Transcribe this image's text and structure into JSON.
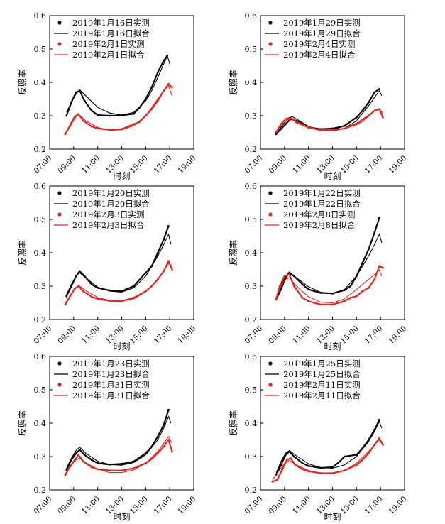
{
  "colors": {
    "measured_2019_jan": "#000000",
    "fitted_2019_jan": "#000000",
    "measured_2019_feb": "#e8221e",
    "fitted_2019_feb": "#e8221e",
    "axis": "#000000"
  },
  "chart_data": [
    {
      "type": "line",
      "xlabel": "时刻",
      "ylabel": "反照率",
      "xticks": [
        "07:00",
        "09:00",
        "11:00",
        "13:00",
        "15:00",
        "17:00",
        "19:00"
      ],
      "yticks": [
        "0.2",
        "0.3",
        "0.4",
        "0.5",
        "0.6"
      ],
      "xlim": [
        7,
        19
      ],
      "ylim": [
        0.2,
        0.6
      ],
      "legend_position": "top-left",
      "series": [
        {
          "name": "2019年1月16日实测",
          "style": "points",
          "color": "#000000",
          "x": [
            8.4,
            8.8,
            9.2,
            9.5,
            9.9,
            10.5,
            11,
            12,
            13,
            14,
            14.5,
            15,
            15.5,
            16,
            16.5,
            16.8
          ],
          "y": [
            0.3,
            0.34,
            0.37,
            0.375,
            0.345,
            0.315,
            0.302,
            0.3,
            0.301,
            0.306,
            0.325,
            0.35,
            0.385,
            0.43,
            0.465,
            0.48
          ]
        },
        {
          "name": "2019年1月16日拟合",
          "style": "line",
          "color": "#000000",
          "x": [
            8.4,
            8.8,
            9.2,
            9.5,
            10,
            11,
            12,
            13,
            14,
            15,
            15.5,
            16,
            16.5,
            16.8,
            17
          ],
          "y": [
            0.31,
            0.34,
            0.365,
            0.378,
            0.36,
            0.325,
            0.308,
            0.302,
            0.31,
            0.345,
            0.375,
            0.415,
            0.455,
            0.48,
            0.455
          ]
        },
        {
          "name": "2019年2月1日实测",
          "style": "points",
          "color": "#e8221e",
          "x": [
            8.3,
            8.7,
            9.1,
            9.4,
            9.8,
            10.5,
            11,
            12,
            13,
            14,
            14.5,
            15,
            15.5,
            16,
            16.5,
            16.9,
            17.2
          ],
          "y": [
            0.245,
            0.27,
            0.295,
            0.305,
            0.285,
            0.268,
            0.262,
            0.258,
            0.26,
            0.275,
            0.282,
            0.3,
            0.32,
            0.345,
            0.375,
            0.395,
            0.385
          ]
        },
        {
          "name": "2019年2月1日拟合",
          "style": "line",
          "color": "#e8221e",
          "x": [
            8.3,
            8.7,
            9.1,
            9.4,
            10,
            11,
            12,
            13,
            14,
            15,
            15.5,
            16,
            16.5,
            16.9,
            17.2
          ],
          "y": [
            0.245,
            0.275,
            0.3,
            0.305,
            0.285,
            0.265,
            0.256,
            0.258,
            0.27,
            0.3,
            0.325,
            0.35,
            0.375,
            0.39,
            0.36
          ]
        }
      ]
    },
    {
      "type": "line",
      "xlabel": "时刻",
      "ylabel": "反照率",
      "xticks": [
        "07:00",
        "09:00",
        "11:00",
        "13:00",
        "15:00",
        "17:00",
        "19:00"
      ],
      "yticks": [
        "0.2",
        "0.3",
        "0.4",
        "0.5",
        "0.6"
      ],
      "xlim": [
        7,
        19
      ],
      "ylim": [
        0.2,
        0.6
      ],
      "legend_position": "top-left",
      "series": [
        {
          "name": "2019年1月29日实测",
          "style": "points",
          "color": "#000000",
          "x": [
            8.3,
            8.7,
            9.1,
            9.5,
            10,
            11,
            12,
            13,
            13.5,
            14,
            15,
            15.5,
            16,
            16.5,
            16.9
          ],
          "y": [
            0.245,
            0.26,
            0.275,
            0.29,
            0.285,
            0.265,
            0.26,
            0.262,
            0.265,
            0.27,
            0.295,
            0.315,
            0.34,
            0.37,
            0.38
          ]
        },
        {
          "name": "2019年1月29日拟合",
          "style": "line",
          "color": "#000000",
          "x": [
            8.3,
            8.8,
            9.3,
            9.6,
            10,
            11,
            12,
            13,
            14,
            15,
            16,
            16.5,
            16.9,
            17.1
          ],
          "y": [
            0.245,
            0.27,
            0.29,
            0.298,
            0.29,
            0.268,
            0.256,
            0.254,
            0.262,
            0.285,
            0.33,
            0.355,
            0.375,
            0.36
          ]
        },
        {
          "name": "2019年2月4日实测",
          "style": "points",
          "color": "#e8221e",
          "x": [
            8.3,
            8.7,
            9.1,
            9.5,
            10,
            11,
            12,
            13,
            14,
            15,
            15.5,
            16,
            16.5,
            16.9,
            17.2
          ],
          "y": [
            0.25,
            0.275,
            0.29,
            0.295,
            0.28,
            0.265,
            0.257,
            0.257,
            0.262,
            0.275,
            0.285,
            0.3,
            0.315,
            0.32,
            0.295
          ]
        },
        {
          "name": "2019年2月4日拟合",
          "style": "line",
          "color": "#e8221e",
          "x": [
            8.3,
            8.8,
            9.3,
            9.6,
            10,
            11,
            12,
            13,
            14,
            15,
            16,
            16.5,
            16.9,
            17.2
          ],
          "y": [
            0.25,
            0.275,
            0.288,
            0.29,
            0.283,
            0.266,
            0.258,
            0.256,
            0.262,
            0.278,
            0.302,
            0.314,
            0.32,
            0.308
          ]
        }
      ]
    },
    {
      "type": "line",
      "xlabel": "时刻",
      "ylabel": "反照率",
      "xticks": [
        "07:00",
        "09:00",
        "11:00",
        "13:00",
        "15:00",
        "17:00",
        "19:00"
      ],
      "yticks": [
        "0.2",
        "0.3",
        "0.4",
        "0.5",
        "0.6"
      ],
      "xlim": [
        7,
        19
      ],
      "ylim": [
        0.2,
        0.6
      ],
      "legend_position": "top-left",
      "series": [
        {
          "name": "2019年1月20日实测",
          "style": "points",
          "color": "#000000",
          "x": [
            8.4,
            8.8,
            9.2,
            9.5,
            9.9,
            10.5,
            11,
            12,
            13,
            14,
            15,
            15.5,
            16,
            16.5,
            16.9
          ],
          "y": [
            0.27,
            0.3,
            0.33,
            0.345,
            0.33,
            0.305,
            0.295,
            0.287,
            0.285,
            0.3,
            0.34,
            0.36,
            0.4,
            0.44,
            0.48
          ]
        },
        {
          "name": "2019年1月20日拟合",
          "style": "line",
          "color": "#000000",
          "x": [
            8.4,
            8.8,
            9.2,
            9.5,
            10,
            11,
            12,
            13,
            14,
            15,
            16,
            16.5,
            16.9,
            17.1
          ],
          "y": [
            0.275,
            0.305,
            0.33,
            0.34,
            0.325,
            0.297,
            0.285,
            0.282,
            0.295,
            0.33,
            0.39,
            0.425,
            0.455,
            0.425
          ]
        },
        {
          "name": "2019年2月3日实测",
          "style": "points",
          "color": "#e8221e",
          "x": [
            8.3,
            8.7,
            9.1,
            9.4,
            9.8,
            10.5,
            11,
            12,
            13,
            14,
            15,
            15.5,
            16,
            16.5,
            16.9,
            17.2
          ],
          "y": [
            0.245,
            0.27,
            0.293,
            0.3,
            0.285,
            0.268,
            0.262,
            0.256,
            0.255,
            0.265,
            0.285,
            0.3,
            0.32,
            0.345,
            0.375,
            0.35
          ]
        },
        {
          "name": "2019年2月3日拟合",
          "style": "line",
          "color": "#e8221e",
          "x": [
            8.3,
            8.8,
            9.2,
            9.5,
            10,
            11,
            12,
            13,
            14,
            15,
            16,
            16.5,
            16.9,
            17.2
          ],
          "y": [
            0.248,
            0.278,
            0.295,
            0.3,
            0.287,
            0.266,
            0.257,
            0.255,
            0.262,
            0.283,
            0.32,
            0.345,
            0.368,
            0.36
          ]
        }
      ]
    },
    {
      "type": "line",
      "xlabel": "时刻",
      "ylabel": "反照率",
      "xticks": [
        "07:00",
        "09:00",
        "11:00",
        "13:00",
        "15:00",
        "17:00",
        "19:00"
      ],
      "yticks": [
        "0.2",
        "0.3",
        "0.4",
        "0.5",
        "0.6"
      ],
      "xlim": [
        7,
        19
      ],
      "ylim": [
        0.2,
        0.6
      ],
      "legend_position": "top-left",
      "series": [
        {
          "name": "2019年1月22日实测",
          "style": "points",
          "color": "#000000",
          "x": [
            8.3,
            8.7,
            9.1,
            9.4,
            9.8,
            10.5,
            11,
            12,
            13,
            14,
            14.5,
            15,
            15.5,
            16,
            16.5,
            16.9
          ],
          "y": [
            0.26,
            0.29,
            0.325,
            0.34,
            0.33,
            0.305,
            0.29,
            0.28,
            0.278,
            0.288,
            0.3,
            0.33,
            0.37,
            0.41,
            0.46,
            0.505
          ]
        },
        {
          "name": "2019年1月22日拟合",
          "style": "line",
          "color": "#000000",
          "x": [
            8.3,
            8.7,
            9.1,
            9.4,
            10,
            11,
            12,
            13,
            14,
            15,
            16,
            16.5,
            16.9,
            17.1
          ],
          "y": [
            0.265,
            0.3,
            0.33,
            0.342,
            0.325,
            0.298,
            0.282,
            0.278,
            0.29,
            0.33,
            0.39,
            0.425,
            0.455,
            0.43
          ]
        },
        {
          "name": "2019年2月8日实测",
          "style": "points",
          "color": "#e8221e",
          "x": [
            8.3,
            8.6,
            9,
            9.4,
            9.8,
            10.5,
            11,
            12,
            13,
            14,
            14.5,
            15,
            15.5,
            16,
            16.5,
            16.9,
            17.2
          ],
          "y": [
            0.26,
            0.3,
            0.33,
            0.335,
            0.3,
            0.265,
            0.255,
            0.245,
            0.245,
            0.255,
            0.265,
            0.27,
            0.285,
            0.295,
            0.32,
            0.36,
            0.355
          ]
        },
        {
          "name": "2019年2月8日拟合",
          "style": "line",
          "color": "#e8221e",
          "x": [
            8.3,
            8.7,
            9.1,
            9.4,
            10,
            11,
            12,
            13,
            14,
            15,
            16,
            16.5,
            16.9,
            17.1
          ],
          "y": [
            0.265,
            0.3,
            0.32,
            0.325,
            0.3,
            0.268,
            0.252,
            0.25,
            0.262,
            0.29,
            0.32,
            0.335,
            0.348,
            0.33
          ]
        }
      ]
    },
    {
      "type": "line",
      "xlabel": "时刻",
      "ylabel": "反照率",
      "xticks": [
        "07:00",
        "09:00",
        "11:00",
        "13:00",
        "15:00",
        "17:00",
        "19:00"
      ],
      "yticks": [
        "0.2",
        "0.3",
        "0.4",
        "0.5",
        "0.6"
      ],
      "xlim": [
        7,
        19
      ],
      "ylim": [
        0.2,
        0.6
      ],
      "legend_position": "top-left",
      "series": [
        {
          "name": "2019年1月23日实测",
          "style": "points",
          "color": "#000000",
          "x": [
            8.4,
            8.8,
            9.2,
            9.5,
            9.9,
            10.5,
            11,
            12,
            13,
            14,
            15,
            15.5,
            16,
            16.5,
            16.9
          ],
          "y": [
            0.26,
            0.29,
            0.31,
            0.32,
            0.305,
            0.29,
            0.28,
            0.276,
            0.278,
            0.285,
            0.31,
            0.33,
            0.36,
            0.395,
            0.44
          ]
        },
        {
          "name": "2019年1月23日拟合",
          "style": "line",
          "color": "#000000",
          "x": [
            8.4,
            8.8,
            9.2,
            9.5,
            10,
            11,
            12,
            13,
            14,
            15,
            16,
            16.5,
            16.9,
            17.1
          ],
          "y": [
            0.265,
            0.295,
            0.318,
            0.328,
            0.31,
            0.286,
            0.276,
            0.274,
            0.282,
            0.305,
            0.35,
            0.385,
            0.42,
            0.4
          ]
        },
        {
          "name": "2019年1月31日实测",
          "style": "points",
          "color": "#e8221e",
          "x": [
            8.3,
            8.7,
            9.1,
            9.4,
            9.8,
            10.5,
            11,
            12,
            13,
            14,
            15,
            15.5,
            16,
            16.5,
            16.9,
            17.2
          ],
          "y": [
            0.245,
            0.27,
            0.29,
            0.305,
            0.285,
            0.268,
            0.262,
            0.258,
            0.258,
            0.265,
            0.28,
            0.293,
            0.31,
            0.33,
            0.35,
            0.315
          ]
        },
        {
          "name": "2019年1月31日拟合",
          "style": "line",
          "color": "#e8221e",
          "x": [
            8.3,
            8.8,
            9.2,
            9.5,
            10,
            11,
            12,
            13,
            14,
            15,
            16,
            16.5,
            16.9,
            17.2
          ],
          "y": [
            0.248,
            0.275,
            0.29,
            0.295,
            0.282,
            0.262,
            0.252,
            0.252,
            0.26,
            0.28,
            0.315,
            0.34,
            0.36,
            0.34
          ]
        }
      ]
    },
    {
      "type": "line",
      "xlabel": "时刻",
      "ylabel": "反照率",
      "xticks": [
        "07:00",
        "09:00",
        "11:00",
        "13:00",
        "15:00",
        "17:00",
        "19:00"
      ],
      "yticks": [
        "0.2",
        "0.3",
        "0.4",
        "0.5",
        "0.6"
      ],
      "xlim": [
        7,
        19
      ],
      "ylim": [
        0.2,
        0.6
      ],
      "legend_position": "top-left",
      "series": [
        {
          "name": "2019年1月25日实测",
          "style": "points",
          "color": "#000000",
          "x": [
            8.3,
            8.7,
            9.1,
            9.4,
            9.8,
            10.5,
            11,
            12,
            13,
            13.6,
            14,
            15,
            15.5,
            16,
            16.5,
            16.9
          ],
          "y": [
            0.245,
            0.275,
            0.305,
            0.315,
            0.3,
            0.28,
            0.272,
            0.266,
            0.268,
            0.285,
            0.3,
            0.305,
            0.325,
            0.35,
            0.38,
            0.41
          ]
        },
        {
          "name": "2019年1月25日拟合",
          "style": "line",
          "color": "#000000",
          "x": [
            8.3,
            8.7,
            9.1,
            9.4,
            10,
            11,
            12,
            13,
            14,
            15,
            16,
            16.5,
            16.9,
            17.1
          ],
          "y": [
            0.25,
            0.285,
            0.31,
            0.318,
            0.302,
            0.278,
            0.267,
            0.265,
            0.275,
            0.3,
            0.345,
            0.375,
            0.405,
            0.385
          ]
        },
        {
          "name": "2019年2月11日实测",
          "style": "points",
          "color": "#e8221e",
          "x": [
            8,
            8.4,
            8.8,
            9.2,
            9.5,
            9.9,
            10.5,
            11,
            12,
            13,
            14,
            15,
            15.5,
            16,
            16.5,
            16.9,
            17.2
          ],
          "y": [
            0.225,
            0.23,
            0.26,
            0.29,
            0.295,
            0.275,
            0.262,
            0.256,
            0.25,
            0.25,
            0.258,
            0.275,
            0.29,
            0.31,
            0.335,
            0.355,
            0.335
          ]
        },
        {
          "name": "2019年2月11日拟合",
          "style": "line",
          "color": "#e8221e",
          "x": [
            8,
            8.5,
            9,
            9.4,
            10,
            11,
            12,
            13,
            14,
            15,
            16,
            16.5,
            16.9,
            17.2
          ],
          "y": [
            0.23,
            0.255,
            0.28,
            0.288,
            0.275,
            0.258,
            0.25,
            0.25,
            0.258,
            0.28,
            0.315,
            0.335,
            0.35,
            0.335
          ]
        }
      ]
    }
  ]
}
